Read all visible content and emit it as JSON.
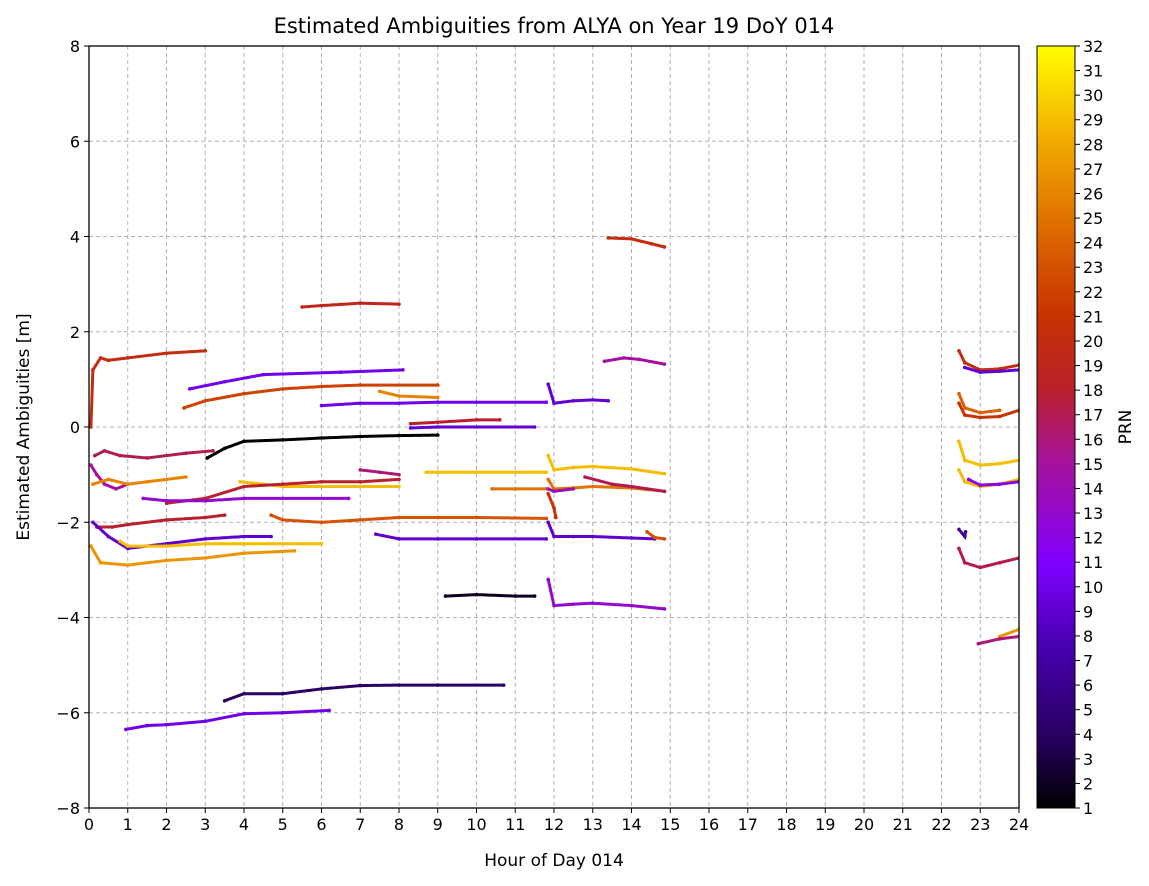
{
  "chart_data": {
    "type": "scatter",
    "title": "Estimated Ambiguities from ALYA on Year 19 DoY 014",
    "xlabel": "Hour of Day 014",
    "ylabel": "Estimated Ambiguities [m]",
    "xlim": [
      0,
      24
    ],
    "ylim": [
      -8,
      8
    ],
    "x_ticks": [
      "0",
      "1",
      "2",
      "3",
      "4",
      "5",
      "6",
      "7",
      "8",
      "9",
      "10",
      "11",
      "12",
      "13",
      "14",
      "15",
      "16",
      "17",
      "18",
      "19",
      "20",
      "21",
      "22",
      "23",
      "24"
    ],
    "y_ticks": [
      "−8",
      "−6",
      "−4",
      "−2",
      "0",
      "2",
      "4",
      "6",
      "8"
    ],
    "grid": true,
    "colorbar": {
      "label": "PRN",
      "colormap": "gnuplot",
      "range": [
        1,
        32
      ],
      "ticks": [
        "1",
        "2",
        "3",
        "4",
        "5",
        "6",
        "7",
        "8",
        "9",
        "10",
        "11",
        "12",
        "13",
        "14",
        "15",
        "16",
        "17",
        "18",
        "19",
        "20",
        "21",
        "22",
        "23",
        "24",
        "25",
        "26",
        "27",
        "28",
        "29",
        "30",
        "31",
        "32"
      ]
    },
    "series": [
      {
        "prn": 20,
        "points": [
          [
            0.05,
            0.0
          ],
          [
            0.1,
            1.2
          ],
          [
            0.3,
            1.45
          ],
          [
            0.5,
            1.4
          ],
          [
            1.0,
            1.45
          ],
          [
            2.0,
            1.55
          ],
          [
            3.0,
            1.6
          ]
        ]
      },
      {
        "prn": 19,
        "points": [
          [
            5.5,
            2.52
          ],
          [
            6.0,
            2.55
          ],
          [
            7.0,
            2.6
          ],
          [
            8.0,
            2.58
          ]
        ]
      },
      {
        "prn": 10,
        "points": [
          [
            2.6,
            0.8
          ],
          [
            3.5,
            0.95
          ],
          [
            4.5,
            1.1
          ],
          [
            6.5,
            1.15
          ],
          [
            8.1,
            1.2
          ]
        ]
      },
      {
        "prn": 22,
        "points": [
          [
            2.45,
            0.4
          ],
          [
            3.0,
            0.55
          ],
          [
            4.0,
            0.7
          ],
          [
            5.0,
            0.8
          ],
          [
            6.0,
            0.85
          ],
          [
            7.0,
            0.88
          ],
          [
            9.0,
            0.88
          ]
        ]
      },
      {
        "prn": 26,
        "points": [
          [
            7.5,
            0.75
          ],
          [
            8.0,
            0.65
          ],
          [
            9.0,
            0.62
          ]
        ]
      },
      {
        "prn": 10,
        "points": [
          [
            6.0,
            0.45
          ],
          [
            7.0,
            0.5
          ],
          [
            8.0,
            0.5
          ],
          [
            9.0,
            0.52
          ],
          [
            10.0,
            0.52
          ],
          [
            11.8,
            0.52
          ]
        ]
      },
      {
        "prn": 18,
        "points": [
          [
            8.3,
            0.07
          ],
          [
            9.0,
            0.1
          ],
          [
            10.0,
            0.15
          ],
          [
            10.6,
            0.15
          ]
        ]
      },
      {
        "prn": 9,
        "points": [
          [
            8.3,
            -0.02
          ],
          [
            9.0,
            0.0
          ],
          [
            10.0,
            0.0
          ],
          [
            11.5,
            0.0
          ]
        ]
      },
      {
        "prn": 1,
        "points": [
          [
            3.05,
            -0.65
          ],
          [
            3.5,
            -0.45
          ],
          [
            4.0,
            -0.3
          ],
          [
            5.0,
            -0.27
          ],
          [
            6.0,
            -0.23
          ],
          [
            7.0,
            -0.2
          ],
          [
            8.0,
            -0.18
          ],
          [
            9.0,
            -0.17
          ]
        ]
      },
      {
        "prn": 17,
        "points": [
          [
            0.15,
            -0.6
          ],
          [
            0.4,
            -0.5
          ],
          [
            0.8,
            -0.6
          ],
          [
            1.5,
            -0.65
          ],
          [
            2.5,
            -0.55
          ],
          [
            3.2,
            -0.5
          ]
        ]
      },
      {
        "prn": 15,
        "points": [
          [
            0.05,
            -0.8
          ],
          [
            0.2,
            -1.0
          ],
          [
            0.4,
            -1.2
          ],
          [
            0.7,
            -1.3
          ],
          [
            1.0,
            -1.2
          ]
        ]
      },
      {
        "prn": 26,
        "points": [
          [
            0.1,
            -1.2
          ],
          [
            0.5,
            -1.1
          ],
          [
            1.0,
            -1.2
          ],
          [
            1.5,
            -1.15
          ],
          [
            2.5,
            -1.05
          ]
        ]
      },
      {
        "prn": 29,
        "points": [
          [
            3.9,
            -1.15
          ],
          [
            4.5,
            -1.2
          ],
          [
            5.0,
            -1.25
          ],
          [
            6.0,
            -1.25
          ],
          [
            7.0,
            -1.25
          ],
          [
            8.0,
            -1.25
          ]
        ]
      },
      {
        "prn": 18,
        "points": [
          [
            2.0,
            -1.6
          ],
          [
            3.0,
            -1.5
          ],
          [
            4.0,
            -1.25
          ],
          [
            5.0,
            -1.2
          ],
          [
            6.0,
            -1.15
          ],
          [
            7.0,
            -1.15
          ],
          [
            8.0,
            -1.1
          ]
        ]
      },
      {
        "prn": 16,
        "points": [
          [
            7.0,
            -0.9
          ],
          [
            7.5,
            -0.95
          ],
          [
            8.0,
            -1.0
          ]
        ]
      },
      {
        "prn": 13,
        "points": [
          [
            1.4,
            -1.5
          ],
          [
            2.0,
            -1.55
          ],
          [
            3.0,
            -1.55
          ],
          [
            4.0,
            -1.5
          ],
          [
            5.0,
            -1.5
          ],
          [
            6.7,
            -1.5
          ]
        ]
      },
      {
        "prn": 29,
        "points": [
          [
            8.7,
            -0.95
          ],
          [
            9.0,
            -0.95
          ],
          [
            10.0,
            -0.95
          ],
          [
            11.8,
            -0.95
          ]
        ]
      },
      {
        "prn": 25,
        "points": [
          [
            10.4,
            -1.3
          ],
          [
            11.0,
            -1.3
          ],
          [
            11.8,
            -1.3
          ]
        ]
      },
      {
        "prn": 18,
        "points": [
          [
            0.2,
            -2.1
          ],
          [
            0.6,
            -2.1
          ],
          [
            1.0,
            -2.05
          ],
          [
            2.0,
            -1.95
          ],
          [
            3.0,
            -1.9
          ],
          [
            3.5,
            -1.85
          ]
        ]
      },
      {
        "prn": 23,
        "points": [
          [
            4.7,
            -1.85
          ],
          [
            5.0,
            -1.95
          ],
          [
            6.0,
            -2.0
          ],
          [
            7.0,
            -1.95
          ],
          [
            8.0,
            -1.9
          ],
          [
            9.0,
            -1.9
          ],
          [
            10.0,
            -1.9
          ],
          [
            11.8,
            -1.92
          ]
        ]
      },
      {
        "prn": 9,
        "points": [
          [
            0.1,
            -2.0
          ],
          [
            0.5,
            -2.3
          ],
          [
            1.0,
            -2.55
          ],
          [
            2.0,
            -2.45
          ],
          [
            3.0,
            -2.35
          ],
          [
            4.0,
            -2.3
          ],
          [
            4.7,
            -2.3
          ]
        ]
      },
      {
        "prn": 29,
        "points": [
          [
            0.8,
            -2.4
          ],
          [
            1.0,
            -2.5
          ],
          [
            2.0,
            -2.5
          ],
          [
            3.0,
            -2.45
          ],
          [
            4.0,
            -2.45
          ],
          [
            6.0,
            -2.45
          ]
        ]
      },
      {
        "prn": 27,
        "points": [
          [
            0.05,
            -2.5
          ],
          [
            0.3,
            -2.85
          ],
          [
            1.0,
            -2.9
          ],
          [
            2.0,
            -2.8
          ],
          [
            3.0,
            -2.75
          ],
          [
            4.0,
            -2.65
          ],
          [
            5.3,
            -2.6
          ]
        ]
      },
      {
        "prn": 9,
        "points": [
          [
            7.4,
            -2.25
          ],
          [
            8.0,
            -2.35
          ],
          [
            9.0,
            -2.35
          ],
          [
            10.0,
            -2.35
          ],
          [
            11.8,
            -2.35
          ]
        ]
      },
      {
        "prn": 2,
        "points": [
          [
            9.2,
            -3.55
          ],
          [
            10.0,
            -3.52
          ],
          [
            11.0,
            -3.55
          ],
          [
            11.5,
            -3.55
          ]
        ]
      },
      {
        "prn": 10,
        "points": [
          [
            0.95,
            -6.35
          ],
          [
            1.5,
            -6.27
          ],
          [
            2.0,
            -6.25
          ],
          [
            3.0,
            -6.18
          ],
          [
            4.0,
            -6.02
          ],
          [
            5.0,
            -6.0
          ],
          [
            6.2,
            -5.95
          ]
        ]
      },
      {
        "prn": 4,
        "points": [
          [
            3.5,
            -5.75
          ],
          [
            4.0,
            -5.6
          ],
          [
            5.0,
            -5.6
          ],
          [
            6.0,
            -5.5
          ],
          [
            7.0,
            -5.43
          ],
          [
            8.0,
            -5.42
          ],
          [
            9.0,
            -5.42
          ],
          [
            10.7,
            -5.42
          ]
        ]
      },
      {
        "prn": 20,
        "points": [
          [
            13.4,
            3.97
          ],
          [
            14.0,
            3.95
          ],
          [
            14.5,
            3.85
          ],
          [
            14.85,
            3.78
          ]
        ]
      },
      {
        "prn": 15,
        "points": [
          [
            13.3,
            1.38
          ],
          [
            13.8,
            1.45
          ],
          [
            14.2,
            1.42
          ],
          [
            14.85,
            1.32
          ]
        ]
      },
      {
        "prn": 9,
        "points": [
          [
            11.85,
            0.9
          ],
          [
            12.0,
            0.5
          ],
          [
            12.5,
            0.55
          ],
          [
            13.0,
            0.57
          ],
          [
            13.4,
            0.55
          ]
        ]
      },
      {
        "prn": 29,
        "points": [
          [
            11.85,
            -0.6
          ],
          [
            12.0,
            -0.9
          ],
          [
            12.5,
            -0.85
          ],
          [
            13.0,
            -0.83
          ],
          [
            14.0,
            -0.88
          ],
          [
            14.85,
            -0.98
          ]
        ]
      },
      {
        "prn": 25,
        "points": [
          [
            11.85,
            -1.1
          ],
          [
            12.0,
            -1.3
          ],
          [
            12.5,
            -1.28
          ],
          [
            13.0,
            -1.25
          ],
          [
            14.0,
            -1.28
          ],
          [
            14.85,
            -1.35
          ]
        ]
      },
      {
        "prn": 17,
        "points": [
          [
            12.8,
            -1.05
          ],
          [
            13.5,
            -1.2
          ],
          [
            14.0,
            -1.25
          ],
          [
            14.85,
            -1.35
          ]
        ]
      },
      {
        "prn": 14,
        "points": [
          [
            11.85,
            -1.3
          ],
          [
            12.0,
            -1.35
          ],
          [
            12.5,
            -1.3
          ]
        ]
      },
      {
        "prn": 21,
        "points": [
          [
            11.85,
            -1.4
          ],
          [
            12.0,
            -1.7
          ],
          [
            12.05,
            -1.9
          ]
        ]
      },
      {
        "prn": 9,
        "points": [
          [
            11.85,
            -2.0
          ],
          [
            12.0,
            -2.3
          ],
          [
            12.5,
            -2.3
          ],
          [
            13.0,
            -2.3
          ],
          [
            14.0,
            -2.33
          ],
          [
            14.6,
            -2.35
          ]
        ]
      },
      {
        "prn": 23,
        "points": [
          [
            14.4,
            -2.2
          ],
          [
            14.6,
            -2.32
          ],
          [
            14.85,
            -2.35
          ]
        ]
      },
      {
        "prn": 13,
        "points": [
          [
            11.85,
            -3.2
          ],
          [
            12.0,
            -3.75
          ],
          [
            12.5,
            -3.72
          ],
          [
            13.0,
            -3.7
          ],
          [
            14.0,
            -3.75
          ],
          [
            14.85,
            -3.82
          ]
        ]
      },
      {
        "prn": 20,
        "points": [
          [
            22.45,
            1.6
          ],
          [
            22.6,
            1.35
          ],
          [
            23.0,
            1.2
          ],
          [
            23.5,
            1.22
          ],
          [
            24.0,
            1.3
          ]
        ]
      },
      {
        "prn": 9,
        "points": [
          [
            22.6,
            1.25
          ],
          [
            23.0,
            1.15
          ],
          [
            23.5,
            1.17
          ],
          [
            24.0,
            1.2
          ]
        ]
      },
      {
        "prn": 24,
        "points": [
          [
            22.45,
            0.7
          ],
          [
            22.6,
            0.4
          ],
          [
            23.0,
            0.3
          ],
          [
            23.5,
            0.35
          ]
        ]
      },
      {
        "prn": 21,
        "points": [
          [
            22.45,
            0.5
          ],
          [
            22.6,
            0.25
          ],
          [
            23.0,
            0.2
          ],
          [
            23.5,
            0.22
          ],
          [
            24.0,
            0.35
          ]
        ]
      },
      {
        "prn": 29,
        "points": [
          [
            22.45,
            -0.3
          ],
          [
            22.6,
            -0.7
          ],
          [
            23.0,
            -0.8
          ],
          [
            23.5,
            -0.77
          ],
          [
            24.0,
            -0.7
          ]
        ]
      },
      {
        "prn": 29,
        "points": [
          [
            22.45,
            -0.9
          ],
          [
            22.6,
            -1.15
          ],
          [
            23.0,
            -1.25
          ],
          [
            23.5,
            -1.2
          ],
          [
            24.0,
            -1.1
          ]
        ]
      },
      {
        "prn": 12,
        "points": [
          [
            22.7,
            -1.1
          ],
          [
            23.0,
            -1.22
          ],
          [
            23.5,
            -1.2
          ],
          [
            24.0,
            -1.15
          ]
        ]
      },
      {
        "prn": 7,
        "points": [
          [
            22.45,
            -2.15
          ],
          [
            22.6,
            -2.3
          ],
          [
            22.62,
            -2.2
          ]
        ]
      },
      {
        "prn": 17,
        "points": [
          [
            22.45,
            -2.55
          ],
          [
            22.6,
            -2.85
          ],
          [
            23.0,
            -2.95
          ],
          [
            23.5,
            -2.85
          ],
          [
            24.0,
            -2.75
          ]
        ]
      },
      {
        "prn": 27,
        "points": [
          [
            23.5,
            -4.4
          ],
          [
            24.0,
            -4.25
          ]
        ]
      },
      {
        "prn": 16,
        "points": [
          [
            22.95,
            -4.55
          ],
          [
            23.5,
            -4.45
          ],
          [
            24.0,
            -4.4
          ]
        ]
      }
    ]
  }
}
